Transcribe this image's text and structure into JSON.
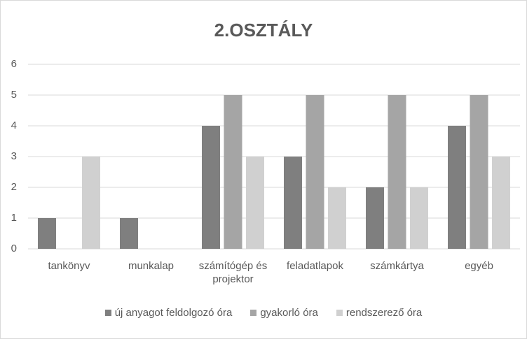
{
  "chart_data": {
    "type": "bar",
    "title": "2.OSZTÁLY",
    "categories": [
      "tankönyv",
      "munkalap",
      "számítógép és projektor",
      "feladatlapok",
      "számkártya",
      "egyéb"
    ],
    "series": [
      {
        "name": "új anyagot feldolgozó óra",
        "color": "#7f7f7f",
        "values": [
          1,
          1,
          4,
          3,
          2,
          4
        ]
      },
      {
        "name": "gyakorló óra",
        "color": "#a5a5a5",
        "values": [
          0,
          0,
          5,
          5,
          5,
          5
        ]
      },
      {
        "name": "rendszerező óra",
        "color": "#d0d0d0",
        "values": [
          3,
          0,
          3,
          2,
          2,
          3
        ]
      }
    ],
    "ylim": [
      0,
      6
    ],
    "yticks": [
      0,
      1,
      2,
      3,
      4,
      5,
      6
    ],
    "grid": true,
    "legend": "bottom"
  }
}
